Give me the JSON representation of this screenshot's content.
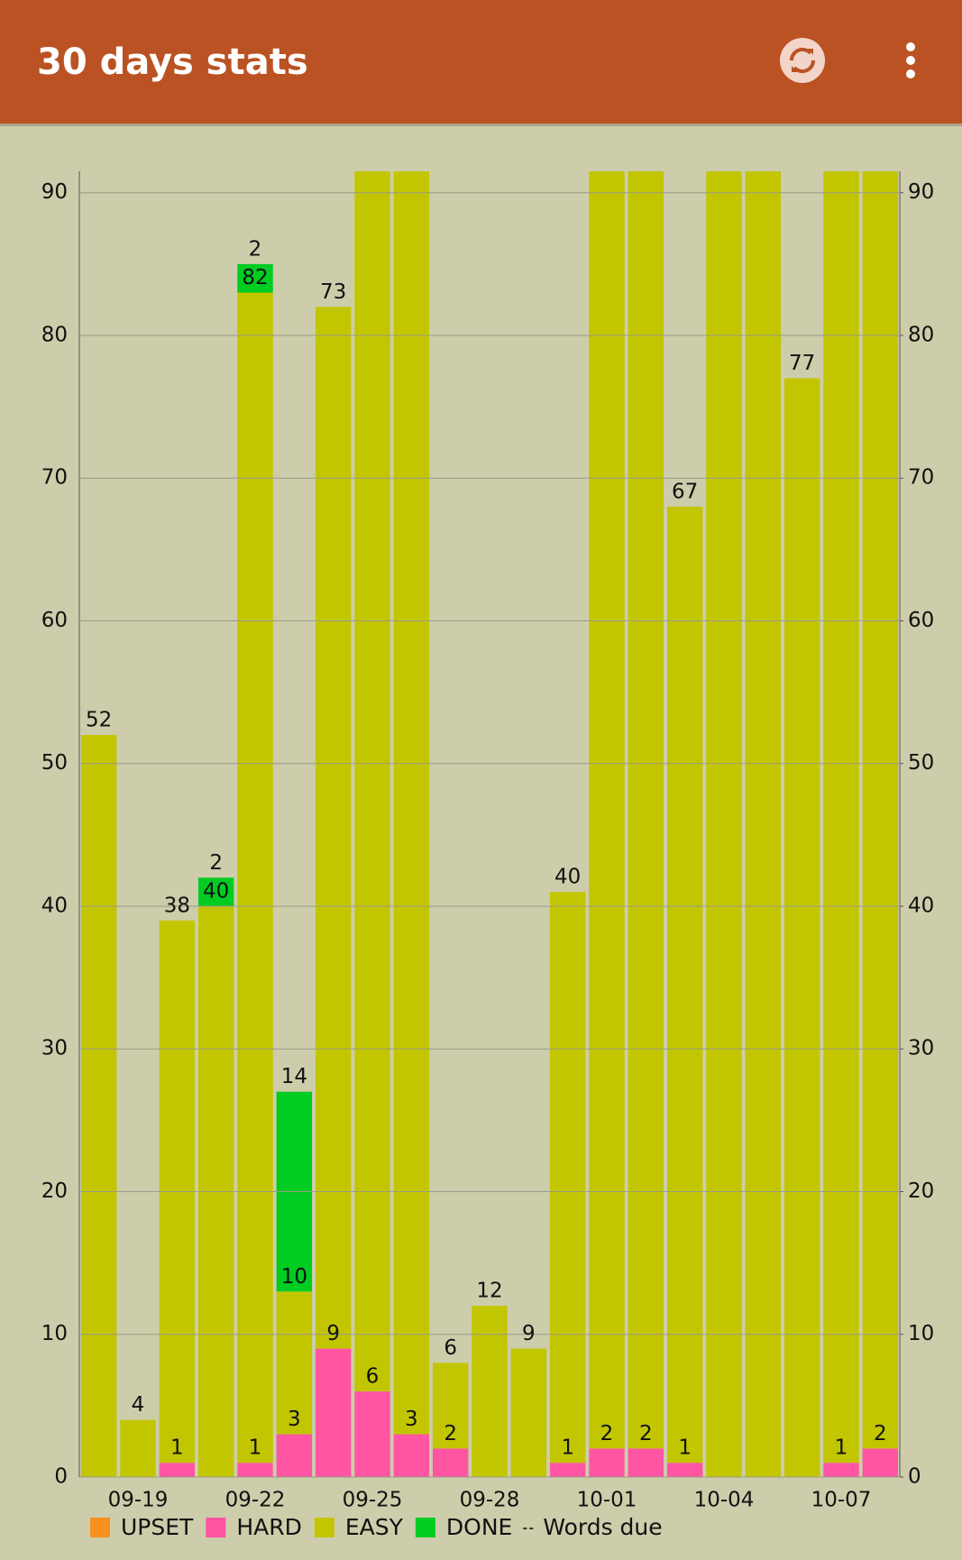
{
  "app_bar": {
    "title": "30 days stats"
  },
  "chart_data": {
    "type": "stacked-bar",
    "categories": [
      null,
      "09-19",
      null,
      null,
      "09-22",
      null,
      null,
      "09-25",
      null,
      null,
      "09-28",
      null,
      null,
      "10-01",
      null,
      null,
      "10-04",
      null,
      null,
      "10-07",
      null
    ],
    "series": [
      {
        "name": "UPSET",
        "color": "#f7901e",
        "values": [
          0,
          0,
          0,
          0,
          0,
          0,
          0,
          0,
          0,
          0,
          0,
          0,
          0,
          0,
          0,
          0,
          0,
          0,
          0,
          0,
          0
        ]
      },
      {
        "name": "HARD",
        "color": "#ff55a3",
        "values": [
          0,
          0,
          1,
          0,
          1,
          3,
          9,
          6,
          3,
          2,
          0,
          0,
          1,
          2,
          2,
          1,
          0,
          0,
          0,
          1,
          2
        ]
      },
      {
        "name": "EASY",
        "color": "#c2c600",
        "values": [
          52,
          4,
          38,
          40,
          82,
          10,
          73,
          92,
          92,
          6,
          12,
          9,
          40,
          92,
          92,
          67,
          92,
          92,
          77,
          92,
          92
        ]
      },
      {
        "name": "DONE",
        "color": "#00cc22",
        "values": [
          0,
          0,
          0,
          2,
          2,
          14,
          0,
          0,
          0,
          0,
          0,
          0,
          0,
          0,
          0,
          0,
          0,
          0,
          0,
          0,
          0
        ]
      }
    ],
    "line_legend": "Words due",
    "ylim": [
      0,
      91.5
    ],
    "yticks": [
      0,
      10,
      20,
      30,
      40,
      50,
      60,
      70,
      80,
      90
    ],
    "y2lim": [
      0,
      91.5
    ],
    "y2ticks": [
      0,
      10,
      20,
      30,
      40,
      50,
      60,
      70,
      80,
      90
    ],
    "grid": true
  }
}
